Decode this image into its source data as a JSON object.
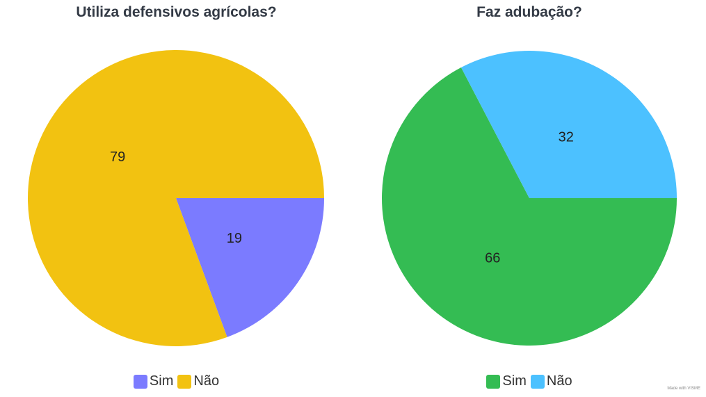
{
  "chart_data": [
    {
      "type": "pie",
      "title": "Utiliza defensivos agrícolas?",
      "categories": [
        "Sim",
        "Não"
      ],
      "values": [
        19,
        79
      ],
      "colors": [
        "#7b7bff",
        "#f2c211"
      ],
      "legend": "bottom"
    },
    {
      "type": "pie",
      "title": "Faz adubação?",
      "categories": [
        "Sim",
        "Não"
      ],
      "values": [
        66,
        32
      ],
      "colors": [
        "#34bc53",
        "#4cc1ff"
      ],
      "legend": "bottom"
    }
  ],
  "watermark": "Made with VISME"
}
